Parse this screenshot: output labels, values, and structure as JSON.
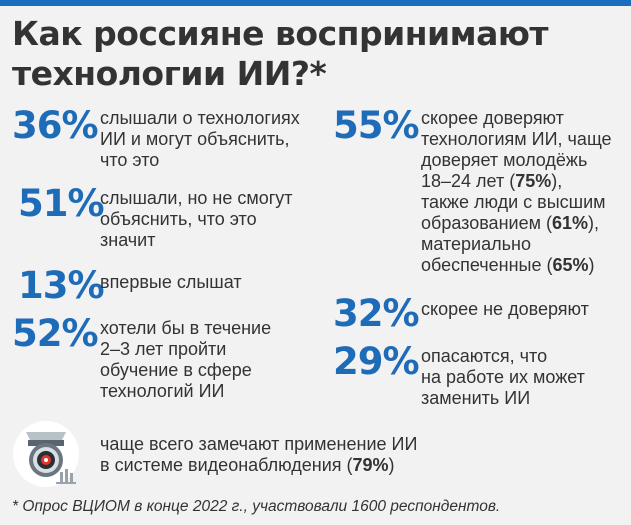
{
  "title": {
    "line1": "Как россияне воспринимают",
    "line2": "технологии ИИ?*"
  },
  "left_stats": [
    {
      "value": "36%",
      "lines": [
        "слышали о технологиях",
        "ИИ и могут объяснить,",
        "что это"
      ]
    },
    {
      "value": "51%",
      "lines": [
        "слышали, но не смогут",
        "объяснить, что это",
        "значит"
      ]
    },
    {
      "value": "13%",
      "lines": [
        "впервые слышат"
      ]
    },
    {
      "value": "52%",
      "lines": [
        "хотели бы в течение",
        "2–3 лет пройти",
        "обучение в сфере",
        "технологий ИИ"
      ]
    }
  ],
  "right_stats": {
    "trust": {
      "value": "55%",
      "line1": "скорее доверяют",
      "line2": "технологиям ИИ, чаще",
      "line3": "доверяет молодёжь",
      "line4_pre": "18–24 лет (",
      "line4_bold": "75%",
      "line4_post": "),",
      "line5": "также люди с высшим",
      "line6_pre": "образованием (",
      "line6_bold": "61%",
      "line6_post": "),",
      "line7": "материально",
      "line8_pre": "обеспеченные (",
      "line8_bold": "65%",
      "line8_post": ")"
    },
    "distrust": {
      "value": "32%",
      "lines": [
        "скорее не доверяют"
      ]
    },
    "fear": {
      "value": "29%",
      "lines": [
        "опасаются, что",
        "на работе их может",
        "заменить ИИ"
      ]
    }
  },
  "camera_note": {
    "icon": "surveillance-camera-icon",
    "line1": "чаще всего замечают применение ИИ",
    "line2_pre": "в системе видеонаблюдения (",
    "line2_bold": "79%",
    "line2_post": ")"
  },
  "footnote": "* Опрос ВЦИОМ в конце 2022 г., участвовали 1600 респондентов.",
  "colors": {
    "accent": "#1e6bb8",
    "text": "#333333",
    "background": "#f2f2f2",
    "camera_red": "#e5352b"
  }
}
